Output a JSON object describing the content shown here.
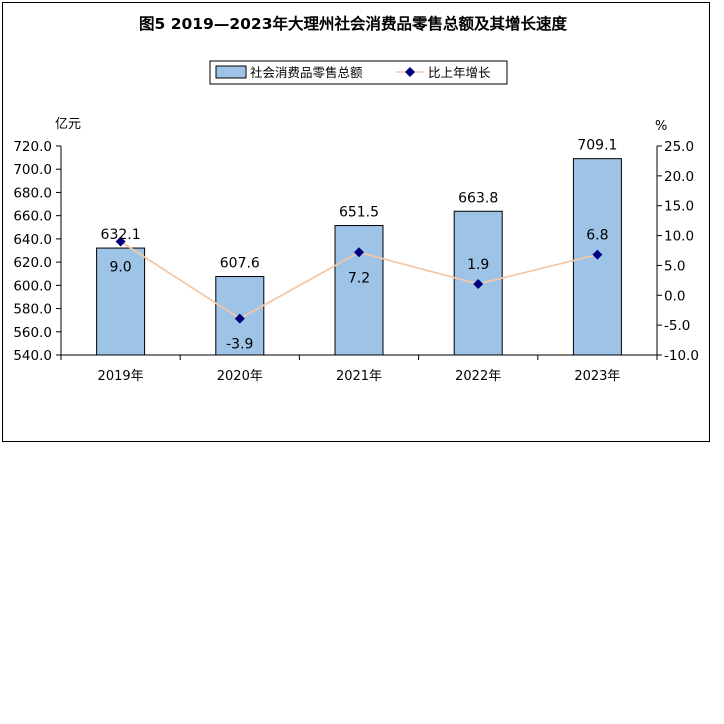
{
  "chart_data": {
    "type": "bar+line",
    "title": "图5   2019—2023年大理州社会消费品零售总额及其增长速度",
    "categories": [
      "2019年",
      "2020年",
      "2021年",
      "2022年",
      "2023年"
    ],
    "y_left": {
      "unit": "亿元",
      "lim": [
        540,
        720
      ],
      "ticks": [
        "540.0",
        "560.0",
        "580.0",
        "600.0",
        "620.0",
        "640.0",
        "660.0",
        "680.0",
        "700.0",
        "720.0"
      ]
    },
    "y_right": {
      "unit": "%",
      "lim": [
        -10,
        25
      ],
      "ticks": [
        "-10.0",
        "-5.0",
        "0.0",
        "5.0",
        "10.0",
        "15.0",
        "20.0",
        "25.0"
      ]
    },
    "series": [
      {
        "name": "社会消费品零售总额",
        "type": "bar",
        "values": [
          632.1,
          607.6,
          651.5,
          663.8,
          709.1
        ],
        "labels": [
          "632.1",
          "607.6",
          "651.5",
          "663.8",
          "709.1"
        ],
        "color": "#9DC3E6"
      },
      {
        "name": "比上年增长",
        "type": "line",
        "values": [
          9.0,
          -3.9,
          7.2,
          1.9,
          6.8
        ],
        "labels": [
          "9.0",
          "-3.9",
          "7.2",
          "1.9",
          "6.8"
        ],
        "line_color": "#F4C7A6",
        "marker_color": "#00007F"
      }
    ],
    "legend": "top-center",
    "grid": false
  }
}
